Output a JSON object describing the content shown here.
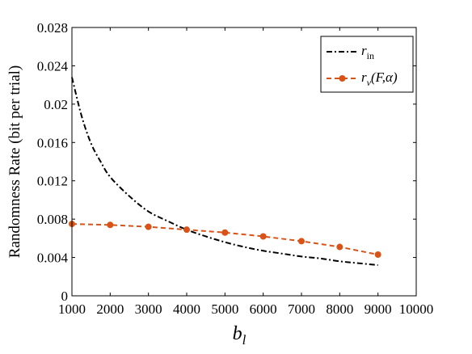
{
  "chart_data": {
    "type": "line",
    "xlabel": "b_l",
    "ylabel": "Randomness Rate (bit per trial)",
    "xlim": [
      1000,
      10000
    ],
    "ylim": [
      0,
      0.028
    ],
    "x_ticks": [
      "1000",
      "2000",
      "3000",
      "4000",
      "5000",
      "6000",
      "7000",
      "8000",
      "9000",
      "10000"
    ],
    "y_ticks": [
      "0",
      "0.004",
      "0.008",
      "0.012",
      "0.016",
      "0.02",
      "0.024",
      "0.028"
    ],
    "legend_position": "top-right",
    "series": [
      {
        "name": "r_in",
        "color": "#000000",
        "style": "dash-dot",
        "x": [
          1000,
          1250,
          1500,
          1750,
          2000,
          2500,
          3000,
          3500,
          4000,
          4500,
          5000,
          5500,
          6000,
          6500,
          7000,
          7500,
          8000,
          8500,
          9000
        ],
        "y": [
          0.0228,
          0.0188,
          0.0159,
          0.014,
          0.0124,
          0.0104,
          0.0088,
          0.0078,
          0.0069,
          0.0062,
          0.0056,
          0.0051,
          0.0047,
          0.0044,
          0.0041,
          0.0039,
          0.0036,
          0.0034,
          0.0032
        ]
      },
      {
        "name": "r_ν(F,α)",
        "color": "#d95319",
        "style": "dashed-markers",
        "x": [
          1000,
          2000,
          3000,
          4000,
          5000,
          6000,
          7000,
          8000,
          9000
        ],
        "y": [
          0.0075,
          0.0074,
          0.0072,
          0.0069,
          0.0066,
          0.0062,
          0.0057,
          0.0051,
          0.0043
        ]
      }
    ]
  },
  "legend": {
    "r_in_main": "r",
    "r_in_sub": "in",
    "r_nu_main": "r",
    "r_nu_sub": "ν",
    "r_nu_args": "(F,α)"
  },
  "axis": {
    "x_main": "b",
    "x_sub": "l",
    "ylabel": "Randomness Rate (bit per trial)"
  }
}
